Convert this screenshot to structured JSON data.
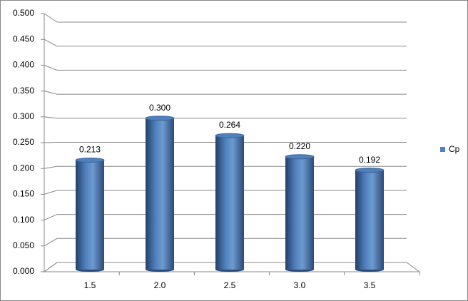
{
  "chart_data": {
    "type": "bar",
    "categories": [
      "1.5",
      "2.0",
      "2.5",
      "3.0",
      "3.5"
    ],
    "series": [
      {
        "name": "Cp",
        "color": "#4f81bd",
        "values": [
          0.213,
          0.3,
          0.264,
          0.22,
          0.192
        ],
        "value_labels": [
          "0.213",
          "0.300",
          "0.264",
          "0.220",
          "0.192"
        ]
      }
    ],
    "ylim": [
      0,
      0.5
    ],
    "yticks": [
      {
        "value": 0,
        "label": "0.000"
      },
      {
        "value": 0.05,
        "label": "0.050"
      },
      {
        "value": 0.1,
        "label": "0.100"
      },
      {
        "value": 0.15,
        "label": "0.150"
      },
      {
        "value": 0.2,
        "label": "0.200"
      },
      {
        "value": 0.25,
        "label": "0.250"
      },
      {
        "value": 0.3,
        "label": "0.300"
      },
      {
        "value": 0.35,
        "label": "0.350"
      },
      {
        "value": 0.4,
        "label": "0.400"
      },
      {
        "value": 0.45,
        "label": "0.450"
      },
      {
        "value": 0.5,
        "label": "0.500"
      }
    ],
    "grid": true,
    "legend": "right"
  }
}
